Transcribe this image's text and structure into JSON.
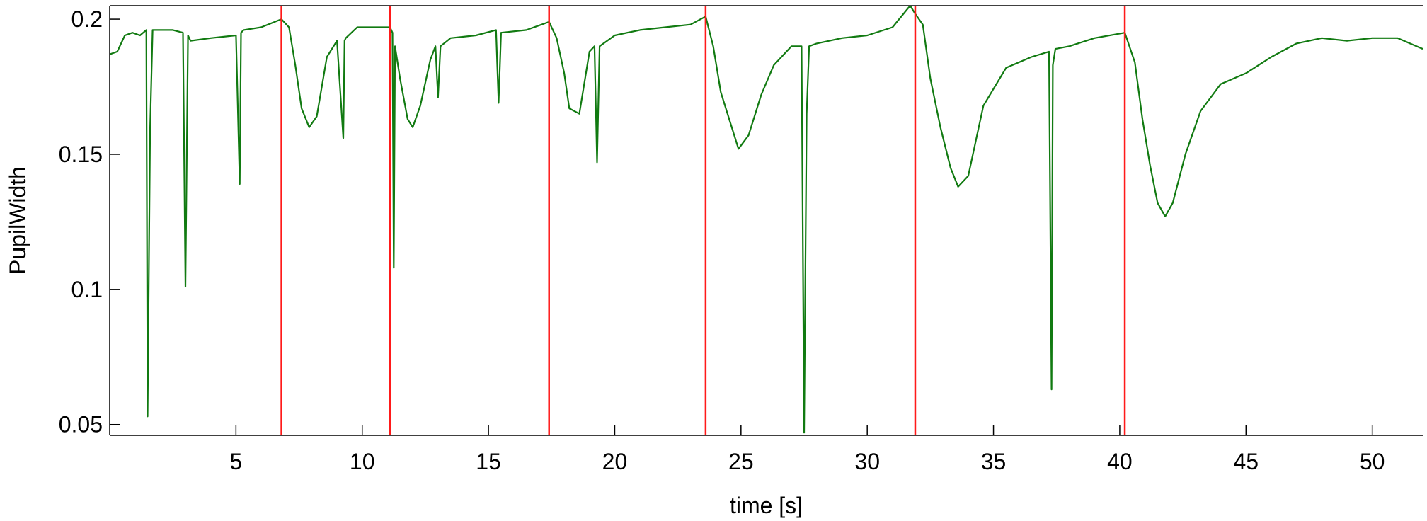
{
  "chart_data": {
    "type": "line",
    "title": "",
    "xlabel": "time [s]",
    "ylabel": "PupilWidth",
    "xlim": [
      0,
      52
    ],
    "ylim": [
      0.046,
      0.205
    ],
    "xticks": [
      5,
      10,
      15,
      20,
      25,
      30,
      35,
      40,
      45,
      50
    ],
    "xtick_labels": [
      "5",
      "10",
      "15",
      "20",
      "25",
      "30",
      "35",
      "40",
      "45",
      "50"
    ],
    "yticks": [
      0.05,
      0.1,
      0.15,
      0.2
    ],
    "ytick_labels": [
      "0.05",
      "0.1",
      "0.15",
      "0.2"
    ],
    "grid": false,
    "legend": "none",
    "colors": {
      "signal": "#117a11",
      "marker": "#ff1a1a",
      "axis": "#000000"
    },
    "event_markers_x": [
      6.8,
      11.1,
      17.4,
      23.6,
      31.9,
      40.2
    ],
    "series": [
      {
        "color": "#117a11",
        "x": [
          0,
          0.3,
          0.6,
          0.9,
          1.2,
          1.45,
          1.5,
          1.6,
          1.7,
          1.8,
          2.5,
          2.9,
          3.0,
          3.1,
          3.2,
          4.0,
          5.0,
          5.15,
          5.2,
          5.3,
          6.0,
          6.8,
          7.1,
          7.35,
          7.6,
          7.9,
          8.2,
          8.6,
          9.0,
          9.25,
          9.3,
          9.35,
          9.8,
          10.6,
          11.1,
          11.2,
          11.25,
          11.3,
          11.5,
          11.8,
          12.0,
          12.3,
          12.7,
          12.9,
          13.0,
          13.1,
          13.5,
          14.5,
          15.3,
          15.4,
          15.5,
          16.5,
          17.4,
          17.7,
          18.0,
          18.2,
          18.6,
          19.0,
          19.2,
          19.3,
          19.4,
          20.0,
          21.0,
          22.0,
          23.0,
          23.6,
          23.9,
          24.2,
          24.6,
          24.9,
          25.3,
          25.8,
          26.3,
          27.0,
          27.4,
          27.5,
          27.6,
          27.7,
          28.0,
          29.0,
          30.0,
          31.0,
          31.7,
          31.9,
          32.2,
          32.5,
          32.9,
          33.3,
          33.6,
          34.0,
          34.6,
          35.5,
          36.5,
          37.2,
          37.3,
          37.35,
          37.45,
          38.0,
          39.0,
          40.2,
          40.6,
          40.9,
          41.2,
          41.5,
          41.8,
          42.1,
          42.6,
          43.2,
          44.0,
          45.0,
          46.0,
          47.0,
          48.0,
          49.0,
          50.0,
          51.0,
          52.0
        ],
        "values": [
          0.187,
          0.188,
          0.194,
          0.195,
          0.194,
          0.196,
          0.053,
          0.16,
          0.196,
          0.196,
          0.196,
          0.195,
          0.101,
          0.194,
          0.192,
          0.193,
          0.194,
          0.139,
          0.195,
          0.196,
          0.197,
          0.2,
          0.197,
          0.183,
          0.167,
          0.16,
          0.164,
          0.186,
          0.192,
          0.156,
          0.192,
          0.193,
          0.197,
          0.197,
          0.197,
          0.195,
          0.108,
          0.19,
          0.178,
          0.163,
          0.16,
          0.168,
          0.185,
          0.19,
          0.171,
          0.19,
          0.193,
          0.194,
          0.196,
          0.169,
          0.195,
          0.196,
          0.199,
          0.193,
          0.18,
          0.167,
          0.165,
          0.188,
          0.19,
          0.147,
          0.19,
          0.194,
          0.196,
          0.197,
          0.198,
          0.201,
          0.19,
          0.173,
          0.161,
          0.152,
          0.157,
          0.172,
          0.183,
          0.19,
          0.19,
          0.047,
          0.165,
          0.19,
          0.191,
          0.193,
          0.194,
          0.197,
          0.205,
          0.202,
          0.198,
          0.178,
          0.16,
          0.145,
          0.138,
          0.142,
          0.168,
          0.182,
          0.186,
          0.188,
          0.063,
          0.183,
          0.189,
          0.19,
          0.193,
          0.195,
          0.184,
          0.163,
          0.146,
          0.132,
          0.127,
          0.132,
          0.15,
          0.166,
          0.176,
          0.18,
          0.186,
          0.191,
          0.193,
          0.192,
          0.193,
          0.193,
          0.189
        ]
      }
    ]
  }
}
